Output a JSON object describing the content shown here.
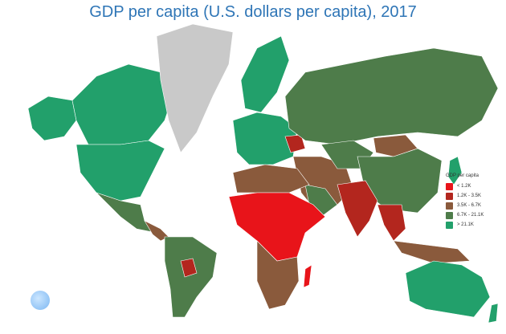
{
  "title": "GDP per capita (U.S. dollars per capita), 2017",
  "legend": {
    "title": "GDP per capita",
    "items": [
      {
        "label": "< 1.2K",
        "color": "#e8141a"
      },
      {
        "label": "1.2K - 3.5K",
        "color": "#b3261e"
      },
      {
        "label": "3.5K - 6.7K",
        "color": "#8a5a3c"
      },
      {
        "label": "6.7K - 21.1K",
        "color": "#4e7c4a"
      },
      {
        "label": "> 21.1K",
        "color": "#22a06b"
      }
    ],
    "placement": "right"
  },
  "no_data_color": "#c9c9c9"
}
